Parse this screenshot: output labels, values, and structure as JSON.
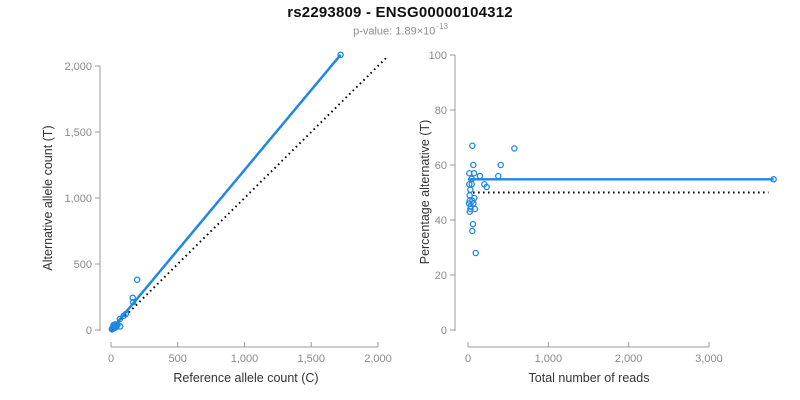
{
  "header": {
    "title": "rs2293809 - ENSG00000104312",
    "pvalue_label": "p-value: ",
    "pvalue_base": "1.89×10",
    "pvalue_exponent": "-13"
  },
  "colors": {
    "series_blue": "#1e87e6",
    "reference_line": "#000000",
    "axis_line": "#9b9b9b",
    "tick_label": "#8a8a8a",
    "axis_title": "#333333",
    "title": "#111111",
    "subtitle": "#8e8e8e"
  },
  "chart_data": [
    {
      "id": "allele_counts",
      "type": "scatter",
      "title": "",
      "xlabel": "Reference allele count (C)",
      "ylabel": "Alternative allele count (T)",
      "xlim": [
        0,
        2000
      ],
      "ylim": [
        0,
        2100
      ],
      "grid": false,
      "legend": "none",
      "xticks": [
        0,
        500,
        1000,
        1500,
        2000
      ],
      "xtick_labels": [
        "0",
        "500",
        "1,000",
        "1,500",
        "2,000"
      ],
      "yticks": [
        0,
        500,
        1000,
        1500,
        2000
      ],
      "ytick_labels": [
        "0",
        "500",
        "1,000",
        "1,500",
        "2,000"
      ],
      "points": [
        [
          1720,
          2085
        ],
        [
          196,
          381
        ],
        [
          163,
          244
        ],
        [
          166,
          211
        ],
        [
          111,
          121
        ],
        [
          95,
          108
        ],
        [
          66,
          83
        ],
        [
          49,
          38
        ],
        [
          41,
          38
        ],
        [
          38,
          24
        ],
        [
          36,
          30
        ],
        [
          35,
          19
        ],
        [
          69,
          27
        ],
        [
          32,
          43
        ],
        [
          29,
          25
        ],
        [
          26,
          40
        ],
        [
          22,
          24
        ],
        [
          21,
          25
        ],
        [
          19,
          15
        ],
        [
          18,
          36
        ],
        [
          17,
          13
        ],
        [
          14,
          15
        ],
        [
          12,
          9
        ],
        [
          11,
          10
        ],
        [
          11,
          10
        ],
        [
          8,
          8
        ],
        [
          7,
          9
        ],
        [
          7,
          5
        ]
      ],
      "lines": [
        {
          "name": "regression-line",
          "style": "solid",
          "color_key": "series_blue",
          "x1": 0,
          "y1": 0,
          "x2": 1720,
          "y2": 2085,
          "width": 2.5
        },
        {
          "name": "identity-line",
          "style": "dotted",
          "color_key": "reference_line",
          "x1": 0,
          "y1": 0,
          "x2": 2060,
          "y2": 2060,
          "width": 1.9
        }
      ]
    },
    {
      "id": "percentage_vs_reads",
      "type": "scatter",
      "title": "",
      "xlabel": "Total number of reads",
      "ylabel": "Percentage alternative (T)",
      "xlim": [
        0,
        3805
      ],
      "ylim": [
        0,
        100
      ],
      "grid": false,
      "legend": "none",
      "xticks": [
        0,
        1000,
        2000,
        3000
      ],
      "xtick_labels": [
        "0",
        "1,000",
        "2,000",
        "3,000"
      ],
      "yticks": [
        0,
        20,
        40,
        60,
        80,
        100
      ],
      "ytick_labels": [
        "0",
        "20",
        "40",
        "60",
        "80",
        "100"
      ],
      "points": [
        [
          3805,
          54.8
        ],
        [
          577,
          66
        ],
        [
          54,
          67
        ],
        [
          66,
          60
        ],
        [
          407,
          60
        ],
        [
          16,
          57
        ],
        [
          75,
          57
        ],
        [
          149,
          56
        ],
        [
          377,
          56
        ],
        [
          46,
          55
        ],
        [
          232,
          52
        ],
        [
          16,
          53
        ],
        [
          46,
          53
        ],
        [
          203,
          53
        ],
        [
          29,
          51
        ],
        [
          21,
          49
        ],
        [
          79,
          48
        ],
        [
          54,
          47
        ],
        [
          21,
          47
        ],
        [
          66,
          46
        ],
        [
          12,
          46
        ],
        [
          34,
          45
        ],
        [
          30,
          44
        ],
        [
          87,
          44
        ],
        [
          21,
          43
        ],
        [
          62,
          38.5
        ],
        [
          54,
          36
        ],
        [
          96,
          28
        ]
      ],
      "lines": [
        {
          "name": "regression-line",
          "style": "solid",
          "color_key": "series_blue",
          "x1": 0,
          "y1": 54.8,
          "x2": 3805,
          "y2": 54.8,
          "width": 2.4
        },
        {
          "name": "expected-line",
          "style": "dotted",
          "color_key": "reference_line",
          "x1": 0,
          "y1": 50,
          "x2": 3740,
          "y2": 50,
          "width": 1.9
        }
      ]
    }
  ]
}
